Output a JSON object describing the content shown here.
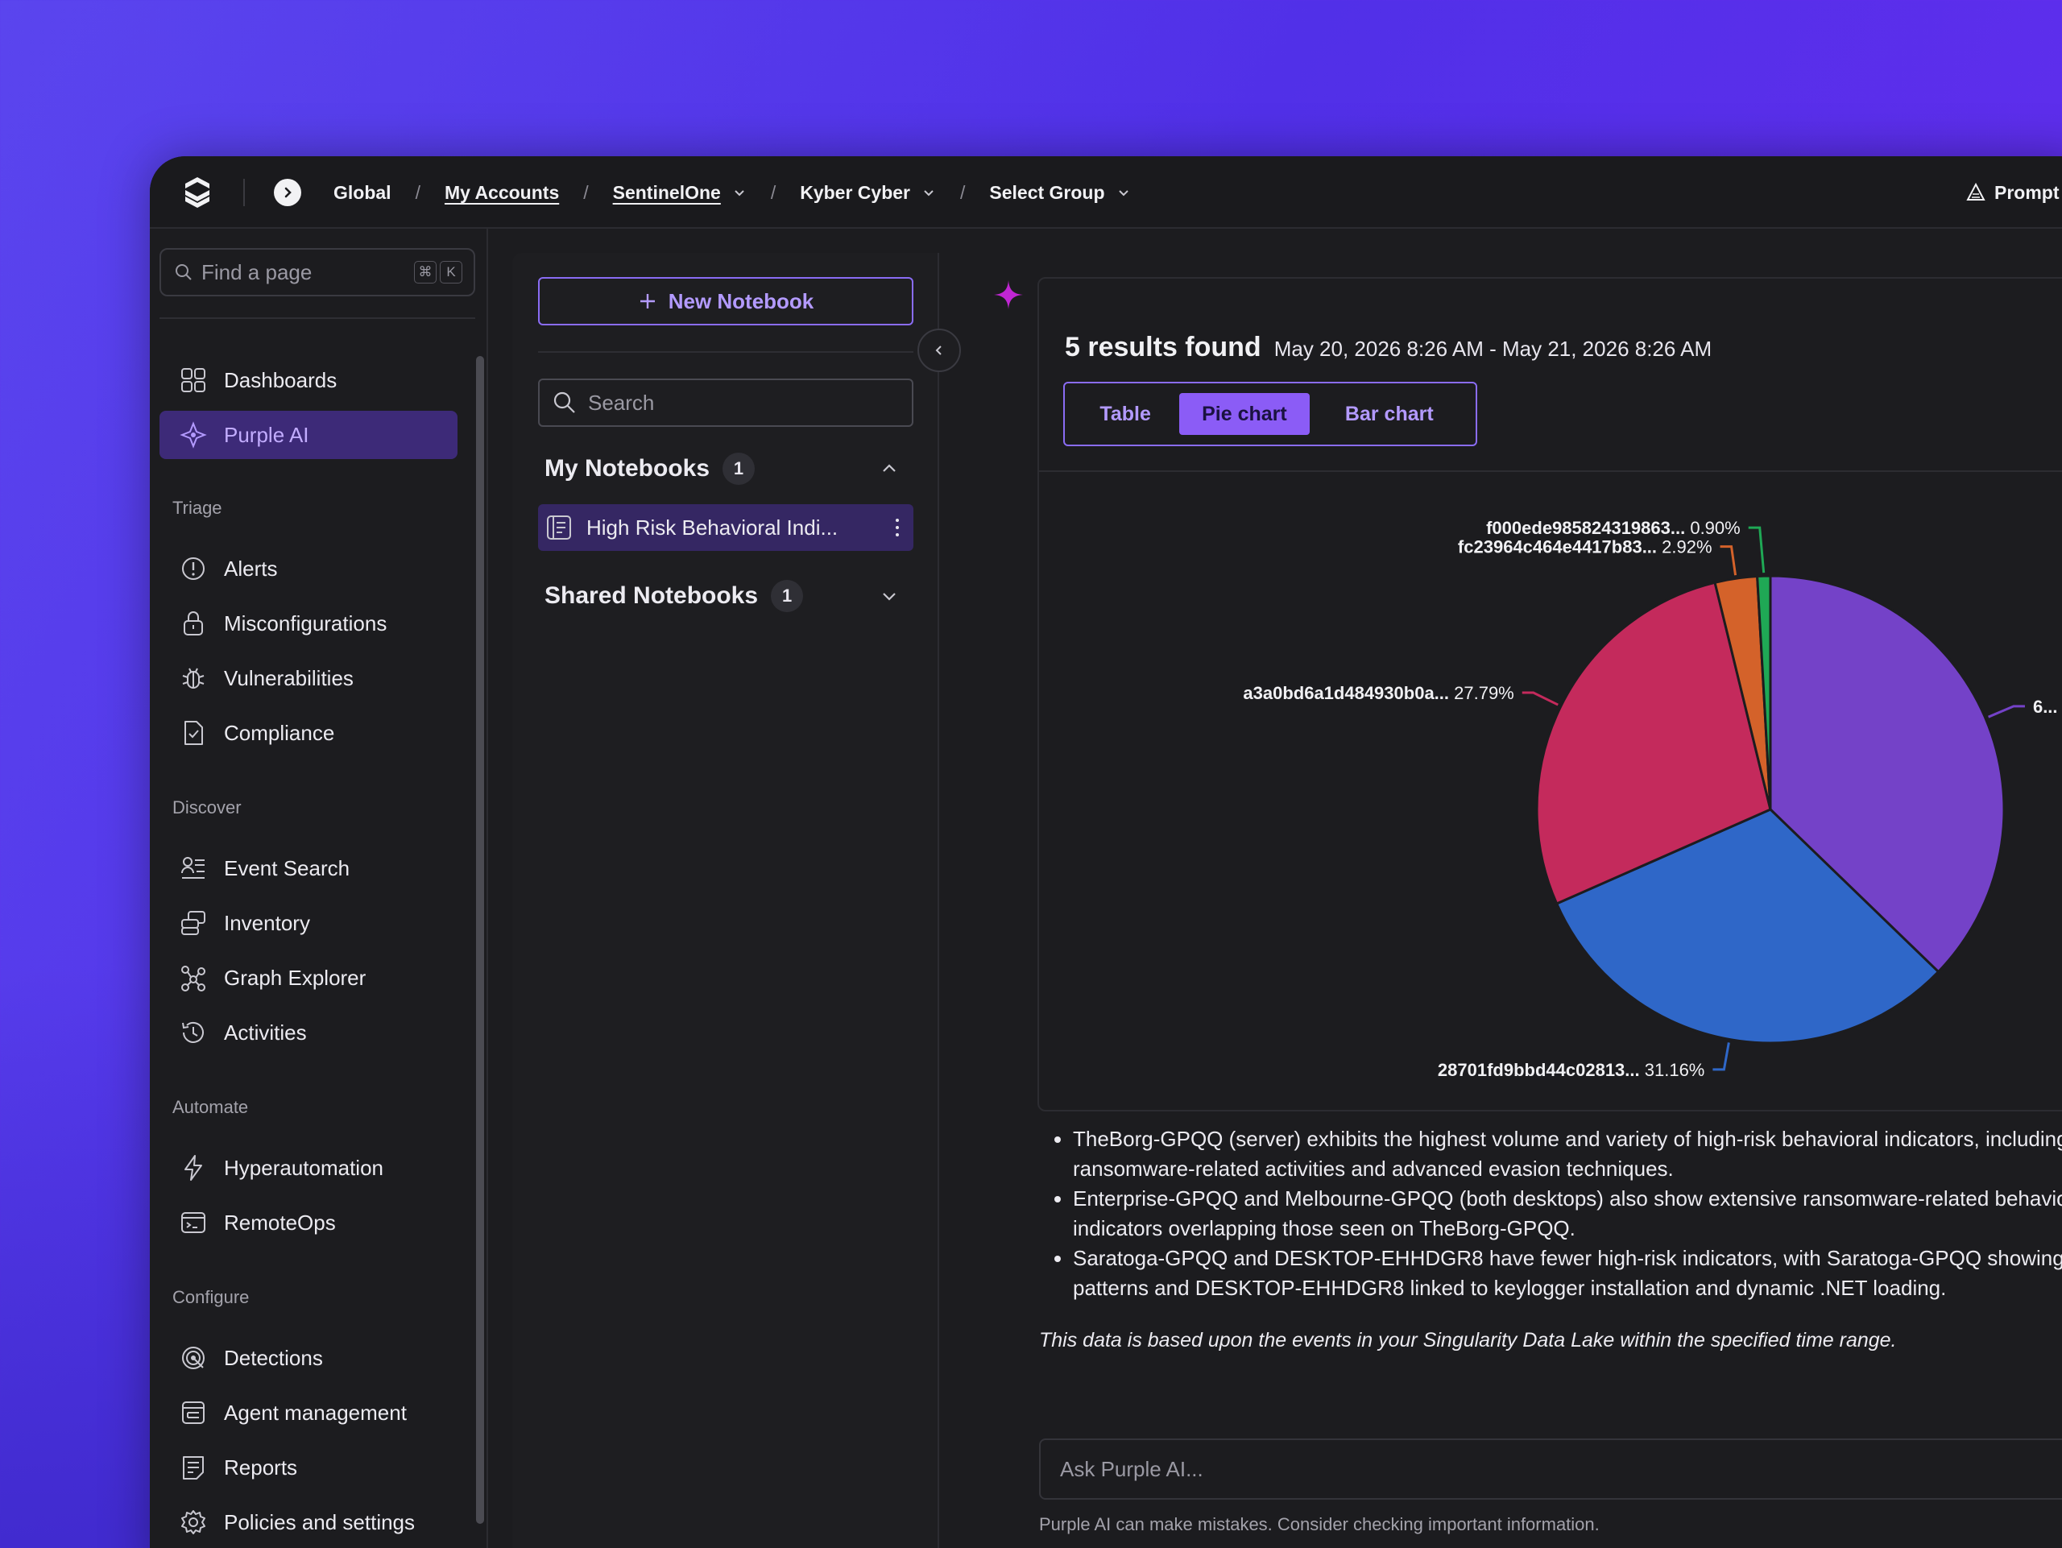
{
  "breadcrumb": {
    "items": [
      {
        "label": "Global",
        "link": false,
        "dropdown": false
      },
      {
        "label": "My Accounts",
        "link": true,
        "dropdown": false
      },
      {
        "label": "SentinelOne",
        "link": true,
        "dropdown": true
      },
      {
        "label": "Kyber Cyber",
        "link": false,
        "dropdown": true
      },
      {
        "label": "Select Group",
        "link": false,
        "dropdown": true
      }
    ],
    "separator": "/"
  },
  "topbar": {
    "prompt_label": "Prompt"
  },
  "sidebar": {
    "find_placeholder": "Find a page",
    "shortcut_keys": [
      "⌘",
      "K"
    ],
    "items": [
      {
        "label": "Dashboards",
        "icon": "dashboard-icon",
        "active": false
      },
      {
        "label": "Purple AI",
        "icon": "purple-ai-icon",
        "active": true
      }
    ],
    "sections": [
      {
        "title": "Triage",
        "items": [
          {
            "label": "Alerts",
            "icon": "alert-icon"
          },
          {
            "label": "Misconfigurations",
            "icon": "lock-icon"
          },
          {
            "label": "Vulnerabilities",
            "icon": "bug-icon"
          },
          {
            "label": "Compliance",
            "icon": "compliance-icon"
          }
        ]
      },
      {
        "title": "Discover",
        "items": [
          {
            "label": "Event Search",
            "icon": "event-search-icon"
          },
          {
            "label": "Inventory",
            "icon": "inventory-icon"
          },
          {
            "label": "Graph Explorer",
            "icon": "graph-icon"
          },
          {
            "label": "Activities",
            "icon": "history-icon"
          }
        ]
      },
      {
        "title": "Automate",
        "items": [
          {
            "label": "Hyperautomation",
            "icon": "bolt-icon"
          },
          {
            "label": "RemoteOps",
            "icon": "terminal-icon"
          }
        ]
      },
      {
        "title": "Configure",
        "items": [
          {
            "label": "Detections",
            "icon": "detection-icon"
          },
          {
            "label": "Agent management",
            "icon": "agent-icon"
          },
          {
            "label": "Reports",
            "icon": "report-icon"
          },
          {
            "label": "Policies and settings",
            "icon": "gear-icon"
          }
        ]
      }
    ]
  },
  "notebooks": {
    "new_label": "New Notebook",
    "search_placeholder": "Search",
    "my": {
      "title": "My Notebooks",
      "count": "1",
      "expanded": true,
      "items": [
        {
          "label": "High Risk Behavioral Indi..."
        }
      ]
    },
    "shared": {
      "title": "Shared Notebooks",
      "count": "1",
      "expanded": false
    }
  },
  "results": {
    "count_label": "5 results found",
    "date_range": "May 20, 2026 8:26 AM - May 21, 2026 8:26 AM",
    "view_tabs": [
      {
        "label": "Table",
        "selected": false
      },
      {
        "label": "Pie chart",
        "selected": true
      },
      {
        "label": "Bar chart",
        "selected": false
      }
    ]
  },
  "chart_data": {
    "type": "pie",
    "slices": [
      {
        "label": "6...",
        "value": 37.23,
        "display": "",
        "color": "#7442c8"
      },
      {
        "label": "28701fd9bbd44c02813...",
        "value": 31.16,
        "display": "31.16%",
        "color": "#2f67c8"
      },
      {
        "label": "a3a0bd6a1d484930b0a...",
        "value": 27.79,
        "display": "27.79%",
        "color": "#c42a5c"
      },
      {
        "label": "fc23964c464e4417b83...",
        "value": 2.92,
        "display": "2.92%",
        "color": "#d4622a"
      },
      {
        "label": "f000ede985824319863...",
        "value": 0.9,
        "display": "0.90%",
        "color": "#1fa855"
      }
    ]
  },
  "summary": {
    "bullets": [
      [
        "TheBorg-GPQQ (server) exhibits the highest volume and variety of high-risk behavioral indicators, including",
        "ransomware-related activities and advanced evasion techniques."
      ],
      [
        "Enterprise-GPQQ and Melbourne-GPQQ (both desktops) also show extensive ransomware-related behavio",
        "indicators overlapping those seen on TheBorg-GPQQ."
      ],
      [
        "Saratoga-GPQQ and DESKTOP-EHHDGR8 have fewer high-risk indicators, with Saratoga-GPQQ showing",
        "patterns and DESKTOP-EHHDGR8 linked to keylogger installation and dynamic .NET loading."
      ]
    ],
    "note": "This data is based upon the events in your Singularity Data Lake within the specified time range."
  },
  "ask": {
    "placeholder": "Ask Purple AI...",
    "disclaimer": "Purple AI can make mistakes. Consider checking important information."
  }
}
